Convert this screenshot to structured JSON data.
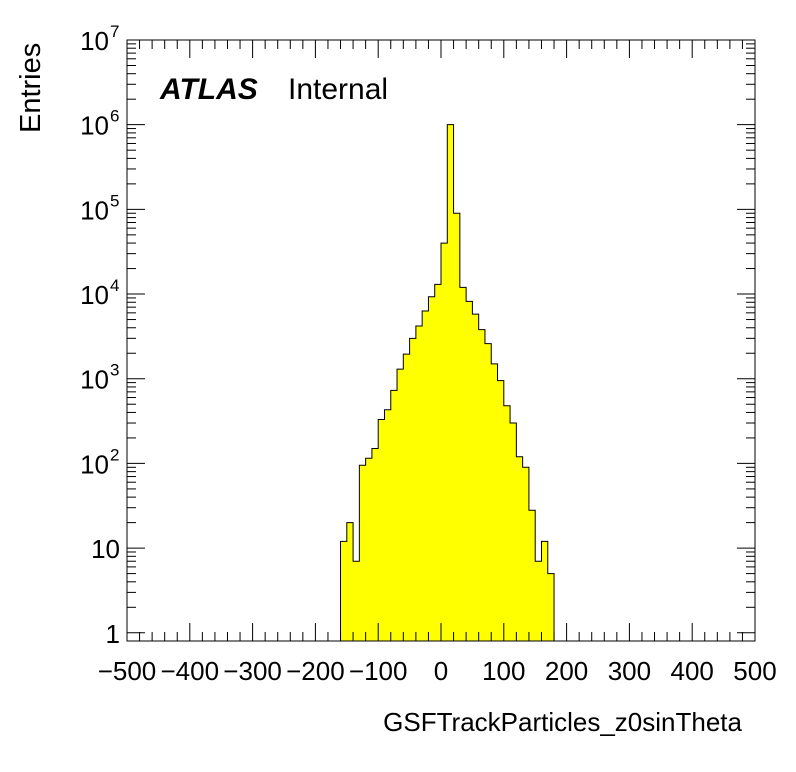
{
  "chart_data": {
    "type": "histogram",
    "title": "",
    "xlabel": "GSFTrackParticles_z0sinTheta",
    "ylabel": "Entries",
    "xlim": [
      -500,
      500
    ],
    "ylim": [
      0.8,
      10000000
    ],
    "yscale": "log",
    "bin_width": 10,
    "fill_color": "#ffff00",
    "line_color": "#000000",
    "bins": [
      {
        "x0": -160,
        "value": 12
      },
      {
        "x0": -150,
        "value": 20
      },
      {
        "x0": -140,
        "value": 7
      },
      {
        "x0": -130,
        "value": 95
      },
      {
        "x0": -120,
        "value": 115
      },
      {
        "x0": -110,
        "value": 150
      },
      {
        "x0": -100,
        "value": 330
      },
      {
        "x0": -90,
        "value": 430
      },
      {
        "x0": -80,
        "value": 730
      },
      {
        "x0": -70,
        "value": 1300
      },
      {
        "x0": -60,
        "value": 1950
      },
      {
        "x0": -50,
        "value": 3000
      },
      {
        "x0": -40,
        "value": 4200
      },
      {
        "x0": -30,
        "value": 6300
      },
      {
        "x0": -20,
        "value": 9300
      },
      {
        "x0": -10,
        "value": 13000
      },
      {
        "x0": 0,
        "value": 40000
      },
      {
        "x0": 10,
        "value": 1000000
      },
      {
        "x0": 20,
        "value": 90000
      },
      {
        "x0": 30,
        "value": 12000
      },
      {
        "x0": 40,
        "value": 8200
      },
      {
        "x0": 50,
        "value": 5800
      },
      {
        "x0": 60,
        "value": 3800
      },
      {
        "x0": 70,
        "value": 2600
      },
      {
        "x0": 80,
        "value": 1500
      },
      {
        "x0": 90,
        "value": 950
      },
      {
        "x0": 100,
        "value": 480
      },
      {
        "x0": 110,
        "value": 300
      },
      {
        "x0": 120,
        "value": 120
      },
      {
        "x0": 130,
        "value": 90
      },
      {
        "x0": 140,
        "value": 28
      },
      {
        "x0": 150,
        "value": 7
      },
      {
        "x0": 160,
        "value": 12
      },
      {
        "x0": 170,
        "value": 5
      }
    ],
    "x_ticks": [
      -500,
      -400,
      -300,
      -200,
      -100,
      0,
      100,
      200,
      300,
      400,
      500
    ],
    "x_tick_labels": [
      "−500",
      "−400",
      "−300",
      "−200",
      "−100",
      "0",
      "100",
      "200",
      "300",
      "400",
      "500"
    ],
    "y_ticks": [
      {
        "value": 1,
        "base": "1",
        "exp": ""
      },
      {
        "value": 10,
        "base": "10",
        "exp": ""
      },
      {
        "value": 100,
        "base": "10",
        "exp": "2"
      },
      {
        "value": 1000,
        "base": "10",
        "exp": "3"
      },
      {
        "value": 10000,
        "base": "10",
        "exp": "4"
      },
      {
        "value": 100000,
        "base": "10",
        "exp": "5"
      },
      {
        "value": 1000000,
        "base": "10",
        "exp": "6"
      },
      {
        "value": 10000000,
        "base": "10",
        "exp": "7"
      }
    ]
  },
  "annotation": {
    "experiment": "ATLAS",
    "status": "Internal"
  }
}
